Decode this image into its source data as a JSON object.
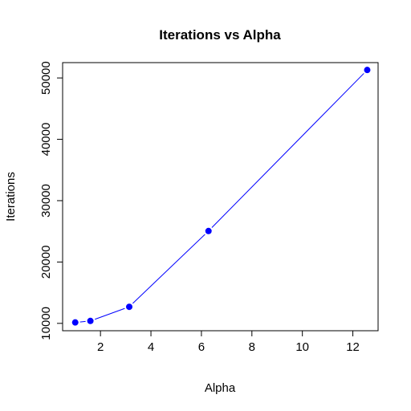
{
  "chart_data": {
    "type": "line",
    "title": "Iterations vs Alpha",
    "xlabel": "Alpha",
    "ylabel": "Iterations",
    "xlim": [
      0.5,
      13
    ],
    "ylim": [
      8800,
      52500
    ],
    "x_ticks": [
      2,
      4,
      6,
      8,
      10,
      12
    ],
    "y_ticks": [
      10000,
      20000,
      30000,
      40000,
      50000
    ],
    "grid": false,
    "legend": "none",
    "series": [
      {
        "x": [
          1,
          1.6,
          3.14,
          6.28,
          12.57
        ],
        "y": [
          10150,
          10400,
          12700,
          25050,
          51300
        ],
        "color": "#0000ff",
        "marker": "filled-circle",
        "line_style": "solid"
      }
    ]
  }
}
